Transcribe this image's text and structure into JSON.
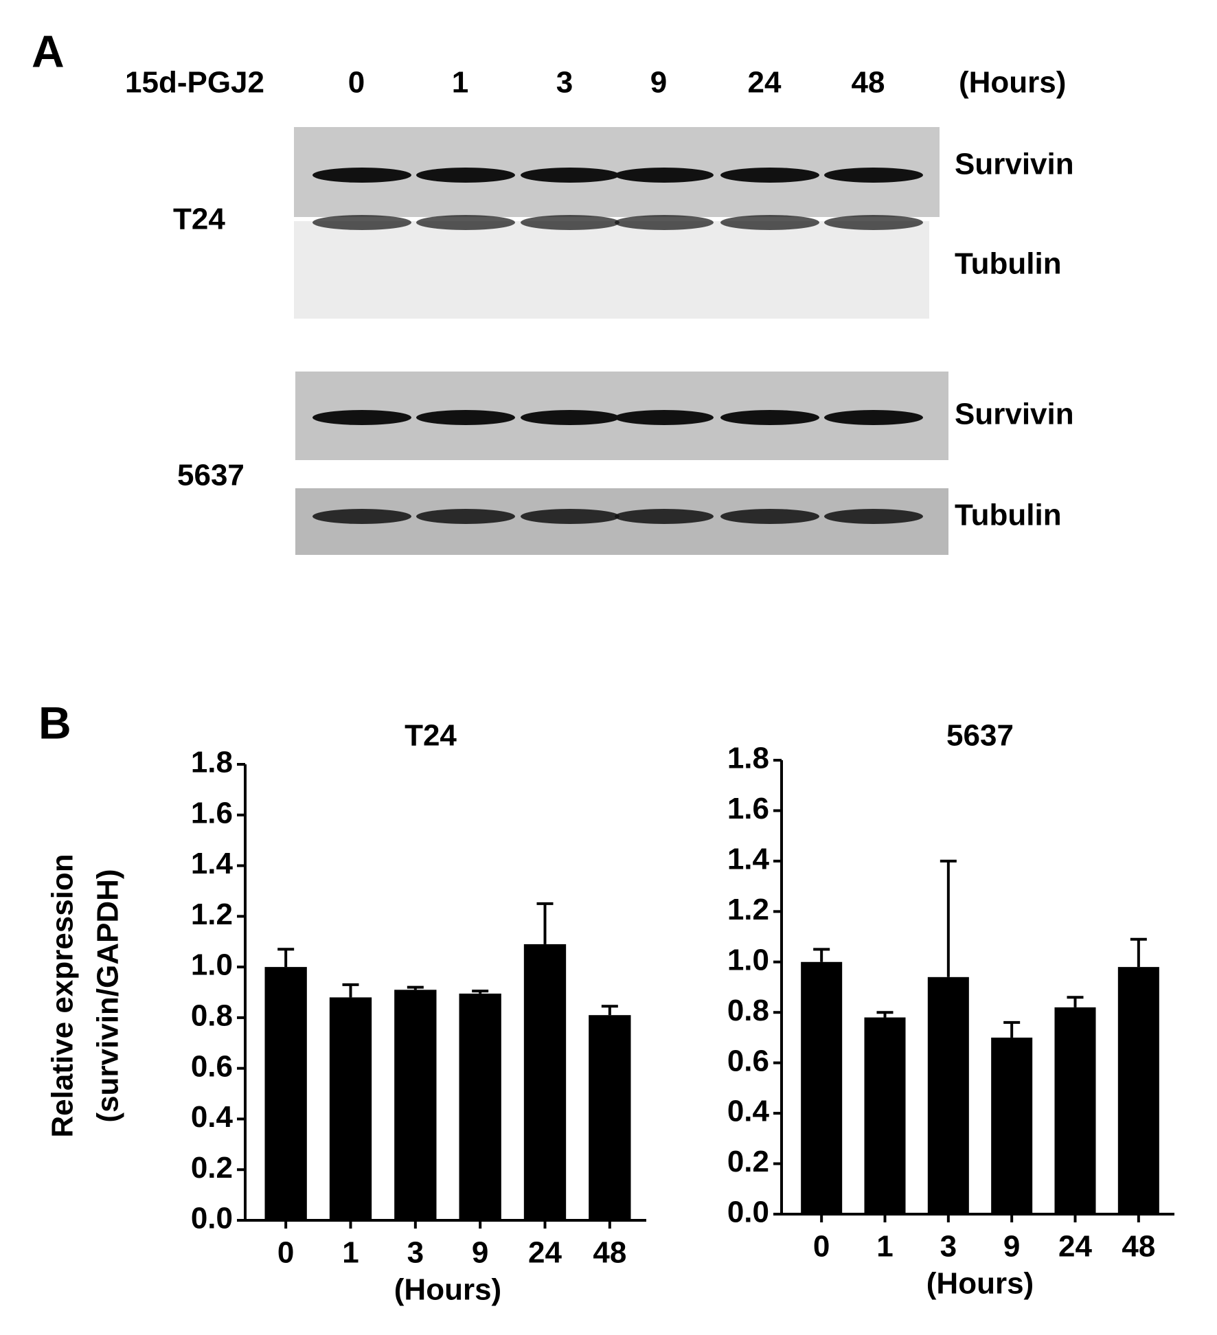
{
  "blot": {
    "panel_label": "A",
    "treatment": "15d-PGJ2",
    "lanes": [
      "0",
      "1",
      "3",
      "9",
      "24",
      "48"
    ],
    "unit": "(Hours)",
    "cell_lines": [
      {
        "name": "T24",
        "bands": [
          "Survivin",
          "Tubulin"
        ]
      },
      {
        "name": "5637",
        "bands": [
          "Survivin",
          "Tubulin"
        ]
      }
    ]
  },
  "chart_data": [
    {
      "type": "bar",
      "panel_label": "B",
      "title": "T24",
      "ylabel": [
        "Relative expression",
        "(survivin/GAPDH)"
      ],
      "xlabel": "(Hours)",
      "categories": [
        "0",
        "1",
        "3",
        "9",
        "24",
        "48"
      ],
      "values": [
        1.0,
        0.88,
        0.91,
        0.895,
        1.09,
        0.81
      ],
      "errors": [
        0.07,
        0.05,
        0.01,
        0.01,
        0.16,
        0.035
      ],
      "color": "#000000",
      "ylim": [
        0,
        1.8
      ],
      "yticks": [
        {
          "value": 0,
          "label": "0.0"
        },
        0.2,
        0.4,
        0.6,
        0.8,
        {
          "value": 1,
          "label": "1.0"
        },
        1.2,
        1.4,
        1.6,
        1.8
      ]
    },
    {
      "type": "bar",
      "title": "5637",
      "xlabel": "(Hours)",
      "categories": [
        "0",
        "1",
        "3",
        "9",
        "24",
        "48"
      ],
      "values": [
        1.0,
        0.78,
        0.94,
        0.7,
        0.82,
        0.98
      ],
      "errors": [
        0.05,
        0.02,
        0.46,
        0.06,
        0.04,
        0.11
      ],
      "color": "#000000",
      "ylim": [
        0,
        1.8
      ],
      "yticks": [
        {
          "value": 0,
          "label": "0.0"
        },
        0.2,
        0.4,
        0.6,
        0.8,
        {
          "value": 1,
          "label": "1.0"
        },
        1.2,
        1.4,
        1.6,
        1.8
      ]
    }
  ]
}
